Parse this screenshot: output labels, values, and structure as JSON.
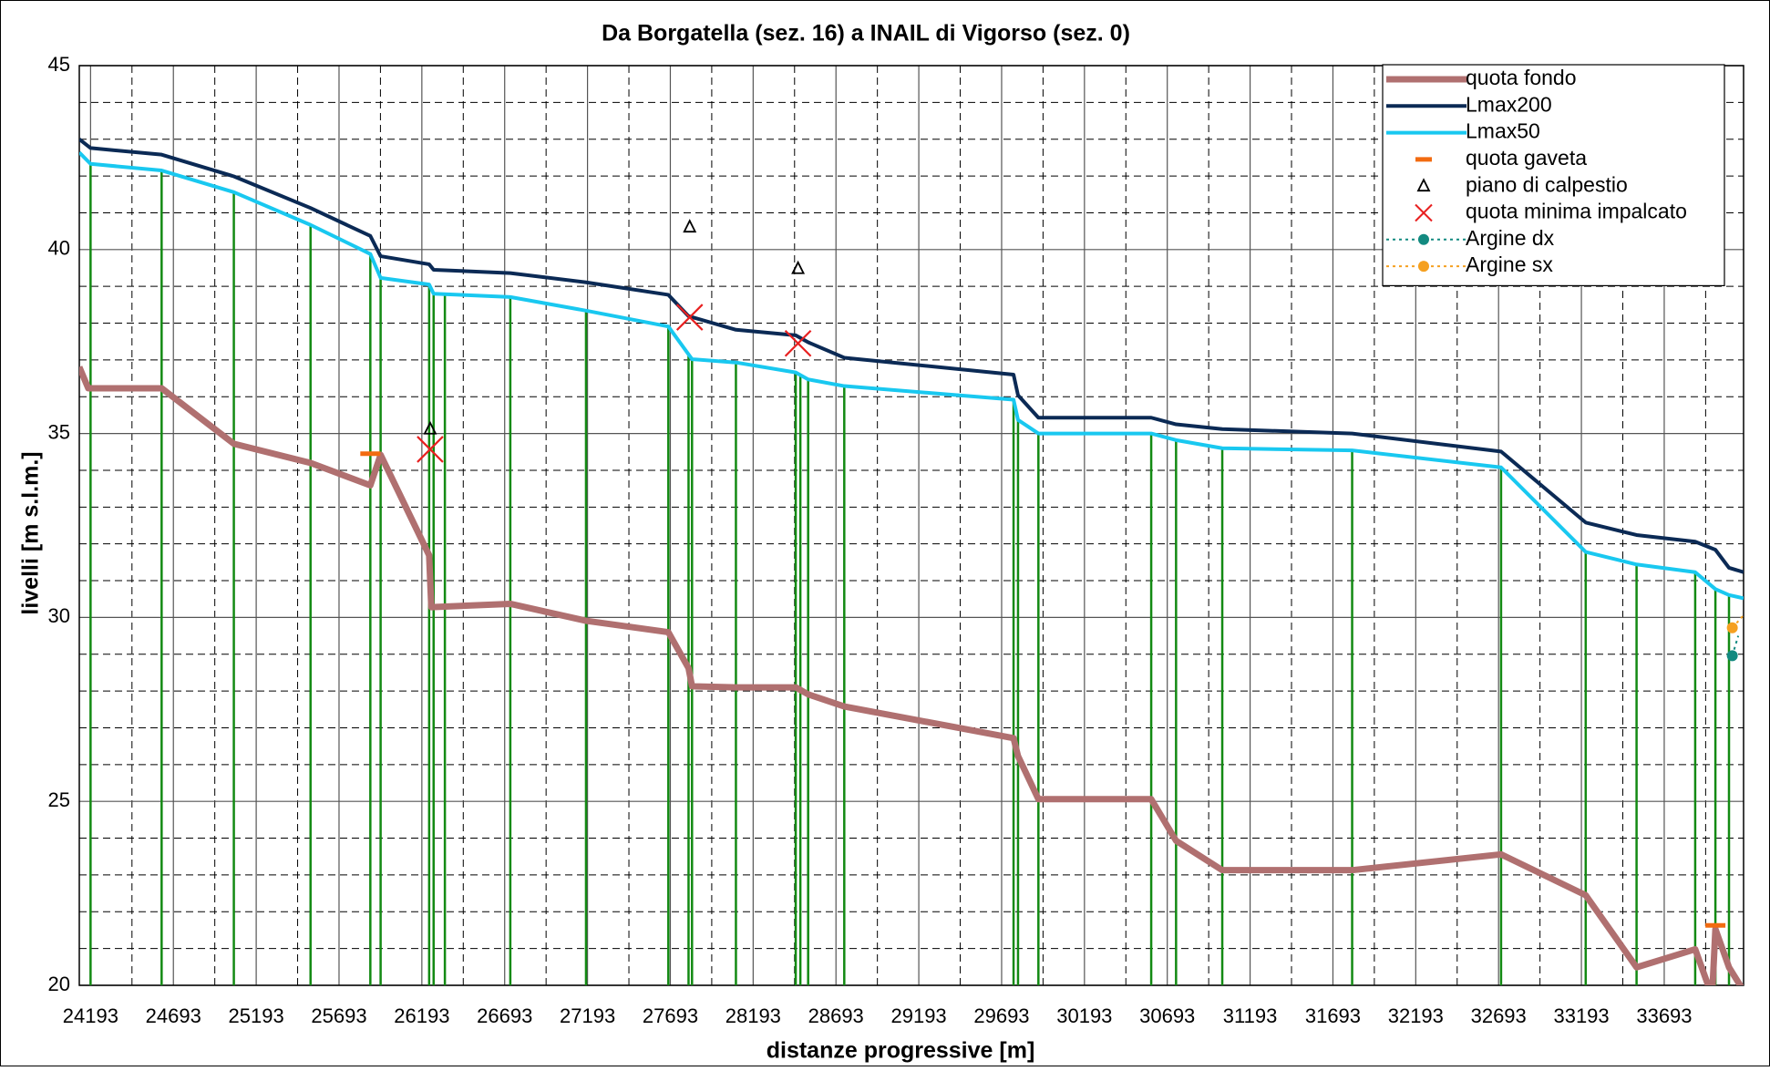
{
  "chart_data": {
    "type": "line",
    "title": "Da Borgatella (sez. 16) a INAIL di Vigorso  (sez. 0)",
    "x_label": "distanze progressive [m]",
    "y_label": "livelli [m s.l.m.]",
    "xlim": [
      24125,
      34172
    ],
    "ylim": [
      20,
      45
    ],
    "xticks": [
      24193,
      24693,
      25193,
      25693,
      26193,
      26693,
      27193,
      27693,
      28193,
      28693,
      29193,
      29693,
      30193,
      30693,
      31193,
      31693,
      32193,
      32693,
      33193,
      33693
    ],
    "yticks": [
      20,
      25,
      30,
      35,
      40,
      45
    ],
    "grid": true,
    "minor_grid": true,
    "legend": "upper right",
    "sections": {
      "color": "#138a13",
      "x": [
        24193,
        24622,
        25058,
        25521,
        25882,
        25944,
        26237,
        26264,
        26332,
        26727,
        27184,
        27681,
        27803,
        27824,
        28089,
        28450,
        28478,
        28525,
        28743,
        29765,
        29792,
        29915,
        30596,
        30746,
        31025,
        31809,
        32708,
        33219,
        33526,
        33880,
        34002,
        34084
      ]
    },
    "series": [
      {
        "name": "quota fondo",
        "color": "#b07070",
        "style": "line",
        "width": 7,
        "x": [
          24125,
          24179,
          24622,
          25058,
          25521,
          25882,
          25944,
          26237,
          26250,
          26727,
          27184,
          27681,
          27803,
          27824,
          28089,
          28450,
          28525,
          28743,
          29765,
          29792,
          29915,
          30596,
          30746,
          31025,
          31809,
          32708,
          33219,
          33526,
          33880,
          33982,
          34002,
          34084,
          34172
        ],
        "values": [
          36.81,
          36.23,
          36.23,
          34.72,
          34.2,
          33.59,
          34.42,
          31.69,
          30.28,
          30.37,
          29.91,
          29.6,
          28.62,
          28.13,
          28.1,
          28.1,
          27.91,
          27.58,
          26.72,
          26.23,
          25.06,
          25.06,
          23.93,
          23.13,
          23.13,
          23.56,
          22.45,
          20.49,
          20.98,
          19.7,
          21.53,
          20.49,
          19.85
        ]
      },
      {
        "name": "Lmax200",
        "color": "#0b2a55",
        "style": "line",
        "width": 4,
        "x": [
          24125,
          24193,
          24622,
          25058,
          25521,
          25882,
          25944,
          26237,
          26264,
          26727,
          27184,
          27681,
          27803,
          28089,
          28450,
          28525,
          28743,
          29765,
          29792,
          29915,
          30596,
          30746,
          31025,
          31809,
          32708,
          33219,
          33526,
          33880,
          34002,
          34084,
          34172
        ],
        "values": [
          43.0,
          42.76,
          42.58,
          41.99,
          41.13,
          40.37,
          39.82,
          39.6,
          39.45,
          39.36,
          39.11,
          38.77,
          38.19,
          37.82,
          37.67,
          37.48,
          37.06,
          36.6,
          36.04,
          35.43,
          35.43,
          35.25,
          35.12,
          35.0,
          34.51,
          32.58,
          32.24,
          32.06,
          31.84,
          31.35,
          31.23
        ]
      },
      {
        "name": "Lmax50",
        "color": "#19c8f0",
        "style": "line",
        "width": 4,
        "x": [
          24125,
          24193,
          24622,
          25058,
          25521,
          25882,
          25944,
          26237,
          26264,
          26727,
          27184,
          27681,
          27824,
          28089,
          28450,
          28525,
          28743,
          29765,
          29792,
          29915,
          30596,
          30746,
          31025,
          31809,
          32708,
          33219,
          33526,
          33880,
          34002,
          34084,
          34172
        ],
        "values": [
          42.64,
          42.33,
          42.15,
          41.56,
          40.67,
          39.88,
          39.23,
          39.05,
          38.8,
          38.71,
          38.34,
          37.91,
          37.02,
          36.93,
          36.66,
          36.47,
          36.29,
          35.92,
          35.37,
          35.0,
          35.0,
          34.82,
          34.6,
          34.54,
          34.08,
          31.78,
          31.44,
          31.23,
          30.77,
          30.61,
          30.52
        ]
      },
      {
        "name": "quota gaveta",
        "color": "#f26b10",
        "style": "dash",
        "x": [
          25882,
          34002
        ],
        "values": [
          34.45,
          21.63
        ]
      },
      {
        "name": "piano di calpestio",
        "color": "#000000",
        "style": "triangle",
        "x": [
          26243,
          27810,
          28464
        ],
        "values": [
          35.12,
          40.61,
          39.48
        ]
      },
      {
        "name": "quota minima impalcato",
        "color": "#e82020",
        "style": "cross",
        "x": [
          26243,
          27810,
          28464
        ],
        "values": [
          34.57,
          38.16,
          37.45
        ]
      },
      {
        "name": "Argine dx",
        "color": "#138a80",
        "style": "dotted",
        "x": [
          34104,
          34140
        ],
        "values": [
          28.96,
          29.5
        ]
      },
      {
        "name": "Argine sx",
        "color": "#f5a020",
        "style": "dotted",
        "x": [
          34104,
          34172
        ],
        "values": [
          29.72,
          30.06
        ]
      }
    ]
  }
}
